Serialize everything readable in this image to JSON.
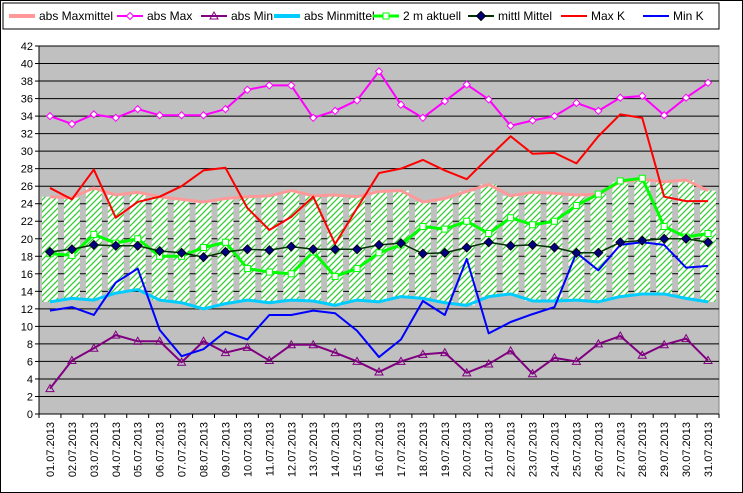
{
  "chart_data": {
    "type": "line",
    "categories": [
      "01.07.2013",
      "02.07.2013",
      "03.07.2013",
      "04.07.2013",
      "05.07.2013",
      "06.07.2013",
      "07.07.2013",
      "08.07.2013",
      "09.07.2013",
      "10.07.2013",
      "11.07.2013",
      "12.07.2013",
      "13.07.2013",
      "14.07.2013",
      "15.07.2013",
      "16.07.2013",
      "17.07.2013",
      "18.07.2013",
      "19.07.2013",
      "20.07.2013",
      "21.07.2013",
      "22.07.2013",
      "23.07.2013",
      "24.07.2013",
      "25.07.2013",
      "26.07.2013",
      "27.07.2013",
      "28.07.2013",
      "29.07.2013",
      "30.07.2013",
      "31.07.2013"
    ],
    "ylim": [
      0,
      42
    ],
    "yticks": [
      0,
      2,
      4,
      6,
      8,
      10,
      12,
      14,
      16,
      18,
      20,
      22,
      24,
      26,
      28,
      30,
      32,
      34,
      36,
      38,
      40,
      42
    ],
    "grid": true,
    "legend_position": "top",
    "series": [
      {
        "name": "abs Maxmittel",
        "color": "#ff9999",
        "style": "band-top",
        "values": [
          24.8,
          24.7,
          25.8,
          25.0,
          25.3,
          24.8,
          24.5,
          24.2,
          24.6,
          24.8,
          24.9,
          25.5,
          24.9,
          25.0,
          24.8,
          25.4,
          25.5,
          24.2,
          24.6,
          25.4,
          26.2,
          24.9,
          25.3,
          25.2,
          25.0,
          25.1,
          26.5,
          26.8,
          26.5,
          26.7,
          25.5
        ]
      },
      {
        "name": "abs Max",
        "color": "#ff00ff",
        "marker": "diamond-open",
        "values": [
          34.0,
          33.1,
          34.2,
          33.8,
          34.8,
          34.1,
          34.1,
          34.1,
          34.8,
          37.0,
          37.5,
          37.5,
          33.8,
          34.6,
          35.8,
          39.1,
          35.3,
          33.8,
          35.7,
          37.6,
          35.9,
          32.9,
          33.5,
          34.0,
          35.5,
          34.6,
          36.1,
          36.3,
          34.1,
          36.1,
          37.8
        ]
      },
      {
        "name": "abs Min",
        "color": "#800080",
        "marker": "triangle-open",
        "values": [
          2.9,
          6.1,
          7.5,
          9.0,
          8.3,
          8.3,
          5.9,
          8.3,
          7.0,
          7.6,
          6.1,
          7.9,
          7.9,
          7.0,
          6.0,
          4.8,
          6.0,
          6.8,
          7.0,
          4.7,
          5.7,
          7.2,
          4.6,
          6.4,
          6.0,
          8.0,
          8.9,
          6.7,
          7.9,
          8.6,
          6.1
        ]
      },
      {
        "name": "abs Minmittel",
        "color": "#00ccff",
        "style": "band-bottom",
        "values": [
          12.8,
          13.2,
          13.0,
          13.8,
          14.2,
          13.0,
          12.7,
          12.0,
          12.6,
          13.0,
          12.7,
          13.0,
          12.9,
          12.4,
          13.0,
          12.8,
          13.4,
          13.2,
          12.7,
          12.4,
          13.4,
          13.7,
          12.9,
          12.9,
          13.0,
          12.8,
          13.4,
          13.7,
          13.7,
          13.2,
          12.8
        ]
      },
      {
        "name": "2 m aktuell",
        "color": "#00ff00",
        "marker": "square-open",
        "values": [
          18.3,
          18.1,
          20.5,
          19.5,
          20.0,
          18.0,
          18.0,
          19.0,
          19.6,
          16.6,
          16.2,
          16.0,
          18.5,
          15.7,
          16.6,
          18.4,
          19.3,
          21.4,
          21.1,
          22.0,
          20.6,
          22.4,
          21.6,
          22.0,
          23.8,
          25.1,
          26.6,
          26.9,
          21.4,
          20.2,
          20.6
        ]
      },
      {
        "name": "mittl Mittel",
        "color": "#003300",
        "marker": "diamond-filled",
        "markerColor": "#000080",
        "values": [
          18.5,
          18.8,
          19.3,
          19.2,
          19.2,
          18.6,
          18.4,
          17.9,
          18.5,
          18.8,
          18.7,
          19.1,
          18.8,
          18.8,
          18.8,
          19.3,
          19.5,
          18.3,
          18.4,
          19.0,
          19.6,
          19.2,
          19.3,
          19.0,
          18.4,
          18.4,
          19.6,
          19.8,
          20.0,
          20.0,
          19.6
        ]
      },
      {
        "name": "Max K",
        "color": "#ff0000",
        "values": [
          25.8,
          24.5,
          27.9,
          22.4,
          24.2,
          24.8,
          26.0,
          27.8,
          28.1,
          23.5,
          21.0,
          22.5,
          24.8,
          19.4,
          23.5,
          27.5,
          28.0,
          29.0,
          27.8,
          26.8,
          29.3,
          31.7,
          29.7,
          29.8,
          28.6,
          31.7,
          34.2,
          33.8,
          24.8,
          24.3,
          24.3
        ]
      },
      {
        "name": "Min K",
        "color": "#0000ff",
        "values": [
          11.8,
          12.2,
          11.3,
          15.0,
          16.6,
          9.6,
          6.6,
          7.4,
          9.4,
          8.5,
          11.3,
          11.3,
          11.8,
          11.5,
          9.5,
          6.5,
          8.5,
          12.9,
          11.3,
          17.7,
          9.2,
          10.5,
          11.4,
          12.2,
          18.4,
          16.4,
          19.3,
          19.6,
          19.3,
          16.7,
          16.9
        ]
      }
    ]
  }
}
